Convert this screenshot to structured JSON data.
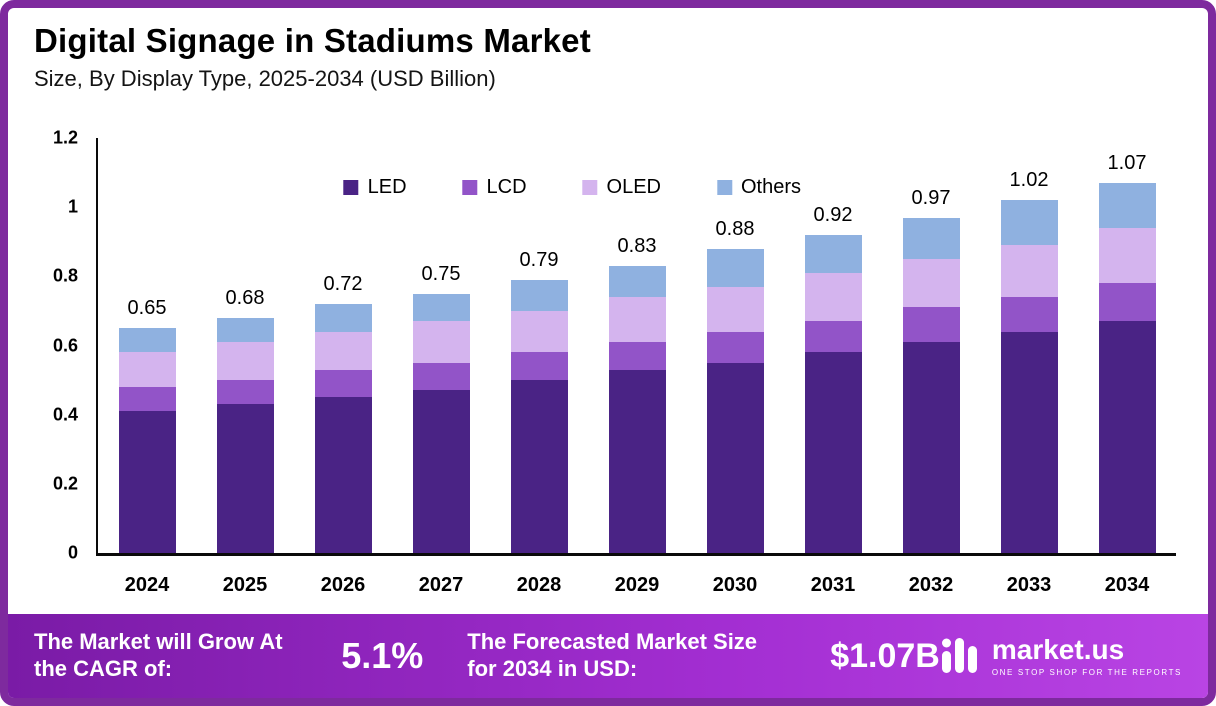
{
  "header": {
    "title": "Digital Signage in Stadiums Market",
    "subtitle": "Size, By Display Type, 2025-2034 (USD Billion)"
  },
  "chart_data": {
    "type": "bar",
    "stacked": true,
    "title": "Digital Signage in Stadiums Market",
    "subtitle": "Size, By Display Type, 2025-2034 (USD Billion)",
    "xlabel": "",
    "ylabel": "",
    "categories": [
      "2024",
      "2025",
      "2026",
      "2027",
      "2028",
      "2029",
      "2030",
      "2031",
      "2032",
      "2033",
      "2034"
    ],
    "series": [
      {
        "name": "LED",
        "color": "#4a2385",
        "values": [
          0.41,
          0.43,
          0.45,
          0.47,
          0.5,
          0.53,
          0.55,
          0.58,
          0.61,
          0.64,
          0.67
        ]
      },
      {
        "name": "LCD",
        "color": "#9254c8",
        "values": [
          0.07,
          0.07,
          0.08,
          0.08,
          0.08,
          0.08,
          0.09,
          0.09,
          0.1,
          0.1,
          0.11
        ]
      },
      {
        "name": "OLED",
        "color": "#d4b4ee",
        "values": [
          0.1,
          0.11,
          0.11,
          0.12,
          0.12,
          0.13,
          0.13,
          0.14,
          0.14,
          0.15,
          0.16
        ]
      },
      {
        "name": "Others",
        "color": "#8fb1e0",
        "values": [
          0.07,
          0.07,
          0.08,
          0.08,
          0.09,
          0.09,
          0.11,
          0.11,
          0.12,
          0.13,
          0.13
        ]
      }
    ],
    "totals": [
      0.65,
      0.68,
      0.72,
      0.75,
      0.79,
      0.83,
      0.88,
      0.92,
      0.97,
      1.02,
      1.07
    ],
    "ylim": [
      0,
      1.2
    ],
    "yticks": [
      0,
      0.2,
      0.4,
      0.6,
      0.8,
      1,
      1.2
    ],
    "ytick_labels": [
      "0",
      "0.2",
      "0.4",
      "0.6",
      "0.8",
      "1",
      "1.2"
    ],
    "legend_position": "top-center",
    "grid": false
  },
  "footer": {
    "cagr_label": "The Market will Grow At the CAGR of:",
    "cagr_value": "5.1%",
    "forecast_label": "The Forecasted Market Size for 2034 in USD:",
    "forecast_value": "$1.07B",
    "brand": "market.us",
    "brand_tagline": "ONE STOP SHOP FOR THE REPORTS"
  },
  "colors": {
    "border": "#7e2a9e",
    "footer_gradient_start": "#7a1ba6",
    "footer_gradient_end": "#b944e4",
    "axis": "#0a0a0a"
  }
}
